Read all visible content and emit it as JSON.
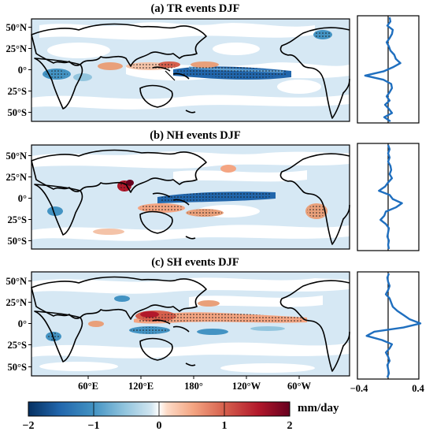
{
  "panels": [
    {
      "title": "(a) TR events   DJF",
      "lat_labels": [
        "50°N",
        "25°N",
        "0°",
        "25°S",
        "50°S"
      ],
      "profile": [
        0.02,
        0.03,
        -0.01,
        0.06,
        0.05,
        0.02,
        -0.02,
        0.01,
        0.03,
        0.08,
        0.1,
        0.16,
        0.06,
        -0.06,
        -0.3,
        -0.06,
        0.04,
        0.05,
        0.02,
        -0.02,
        0.02,
        -0.04,
        0.01,
        0.05,
        -0.05,
        0.03
      ]
    },
    {
      "title": "(b) NH events   DJF",
      "lat_labels": [
        "50°N",
        "25°N",
        "0°",
        "25°S",
        "50°S"
      ],
      "profile": [
        0.0,
        0.02,
        0.0,
        0.02,
        0.0,
        0.03,
        0.04,
        0.02,
        0.05,
        0.0,
        -0.04,
        -0.12,
        0.02,
        0.06,
        0.18,
        0.1,
        -0.03,
        -0.05,
        -0.1,
        -0.03,
        0.01,
        0.0,
        -0.01,
        0.01,
        0.0,
        0.01
      ]
    },
    {
      "title": "(c) SH events   DJF",
      "lat_labels": [
        "50°N",
        "25°N",
        "0°",
        "25°S",
        "50°S"
      ],
      "profile": [
        0.01,
        -0.01,
        0.0,
        0.02,
        0.0,
        -0.03,
        0.02,
        0.04,
        0.06,
        0.12,
        0.2,
        0.28,
        0.42,
        0.2,
        -0.18,
        -0.28,
        -0.08,
        0.05,
        0.02,
        -0.03,
        0.0,
        0.02,
        -0.01,
        0.0,
        0.01,
        -0.01
      ]
    }
  ],
  "lon_labels": [
    "60°E",
    "120°E",
    "180°",
    "120°W",
    "60°W"
  ],
  "profile_axis": {
    "xlim": [
      -0.4,
      0.4
    ],
    "tick_labels": [
      "−0.4",
      "0.4"
    ]
  },
  "colorbar": {
    "tick_labels": [
      "−2",
      "−1",
      "0",
      "1",
      "2"
    ],
    "unit": "mm/day",
    "range": [
      -2,
      2
    ]
  },
  "colors": {
    "strong_blue": "#2166ac",
    "light_blue": "#a9cfe6",
    "pale_blue": "#d6e8f4",
    "red": "#b2182b",
    "orange": "#e9a07a",
    "profile_line": "#1f6fbf"
  }
}
